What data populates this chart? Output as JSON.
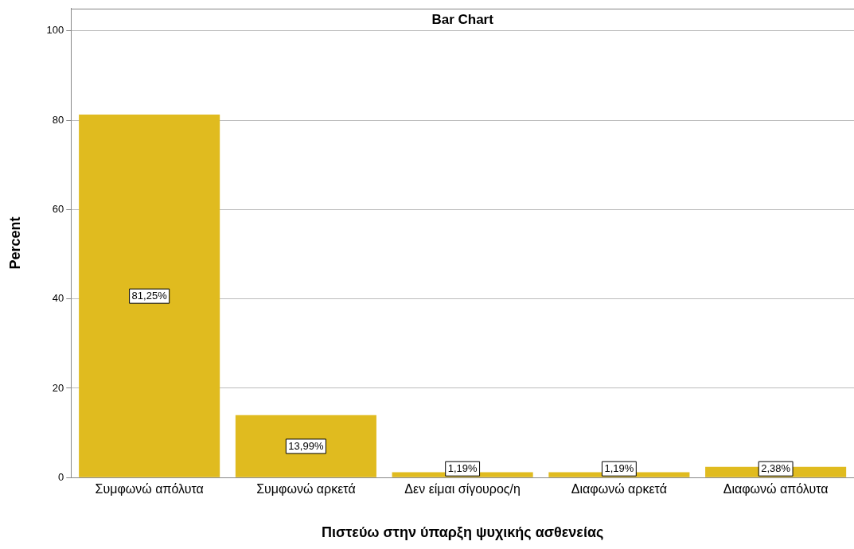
{
  "chart_data": {
    "type": "bar",
    "title": "Bar Chart",
    "xlabel": "Πιστεύω στην ύπαρξη ψυχικής ασθενείας",
    "ylabel": "Percent",
    "categories": [
      "Συμφωνώ απόλυτα",
      "Συμφωνώ αρκετά",
      "Δεν είμαι σίγουρος/η",
      "Διαφωνώ αρκετά",
      "Διαφωνώ απόλυτα"
    ],
    "values": [
      81.25,
      13.99,
      1.19,
      1.19,
      2.38
    ],
    "value_labels": [
      "81,25%",
      "13,99%",
      "1,19%",
      "1,19%",
      "2,38%"
    ],
    "color": "#e0bb1f",
    "ylim": [
      0,
      105
    ],
    "yticks": [
      0,
      20,
      40,
      60,
      80,
      100
    ],
    "grid": "y",
    "legend": false
  }
}
